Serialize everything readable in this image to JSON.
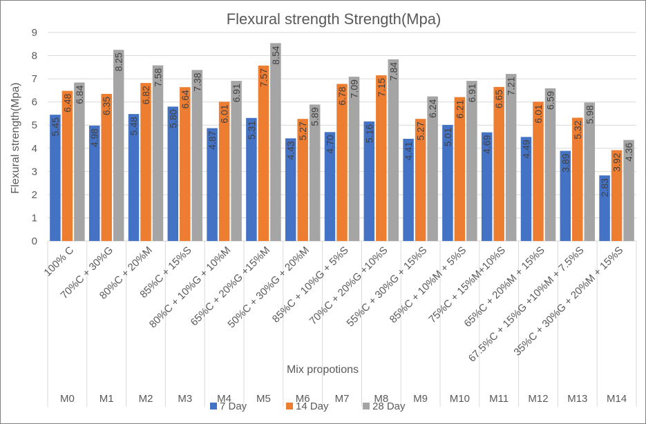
{
  "chart_data": {
    "type": "bar",
    "title": "Flexural strength Strength(Mpa)",
    "xlabel": "Mix propotions",
    "ylabel": "Flexural strength(Mpa)",
    "ylim": [
      0,
      9
    ],
    "yticks": [
      "0",
      "1",
      "2",
      "3",
      "4",
      "5",
      "6",
      "7",
      "8",
      "9"
    ],
    "grid": true,
    "legend_position": "bottom",
    "categories": [
      "100% C",
      "70%C + 30%G",
      "80%C + 20%M",
      "85%C + 15%S",
      "80%C + 10%G + 10%M",
      "65%C + 20%G +15%M",
      "50%C + 30%G + 20%M",
      "85%C + 10%G + 5%S",
      "70%C + 20%G +10%S",
      "55%C + 30%G + 15%S",
      "85%C + 10%M + 5%S",
      "75%C + 15%M+10%S",
      "65%C + 20%M + 15%S",
      "67.5%C + 15%G +10%M + 7.5%S",
      "35%C + 30%G + 20%M + 15%S"
    ],
    "groups": [
      "M0",
      "M1",
      "M2",
      "M3",
      "M4",
      "M5",
      "M6",
      "M7",
      "M8",
      "M9",
      "M10",
      "M11",
      "M12",
      "M13",
      "M14"
    ],
    "series": [
      {
        "name": "7 Day",
        "color": "#4472c4",
        "values": [
          5.45,
          4.98,
          5.48,
          5.8,
          4.87,
          5.31,
          4.43,
          4.7,
          5.16,
          4.41,
          5.01,
          4.69,
          4.49,
          3.89,
          2.83
        ],
        "labels": [
          "5.45",
          "4.98",
          "5.48",
          "5.80",
          "4.87",
          "5.31",
          "4.43",
          "4.70",
          "5.16",
          "4.41",
          "5.01",
          "4.69",
          "4.49",
          "3.89",
          "2.83"
        ]
      },
      {
        "name": "14 Day",
        "color": "#ed7d31",
        "values": [
          6.48,
          6.35,
          6.82,
          6.64,
          6.01,
          7.57,
          5.27,
          6.78,
          7.15,
          5.27,
          6.21,
          6.65,
          6.01,
          5.32,
          3.92
        ],
        "labels": [
          "6.48",
          "6.35",
          "6.82",
          "6.64",
          "6.01",
          "7.57",
          "5.27",
          "6.78",
          "7.15",
          "5.27",
          "6.21",
          "6.65",
          "6.01",
          "5.32",
          "3.92"
        ]
      },
      {
        "name": "28 Day",
        "color": "#a5a5a5",
        "values": [
          6.84,
          8.25,
          7.58,
          7.38,
          6.91,
          8.54,
          5.89,
          7.09,
          7.84,
          6.24,
          6.91,
          7.21,
          6.59,
          5.98,
          4.36
        ],
        "labels": [
          "6.84",
          "8.25",
          "7.58",
          "7.38",
          "6.91",
          "8.54",
          "5.89",
          "7.09",
          "7.84",
          "6.24",
          "6.91",
          "7.21",
          "6.59",
          "5.98",
          "4.36"
        ]
      }
    ]
  }
}
